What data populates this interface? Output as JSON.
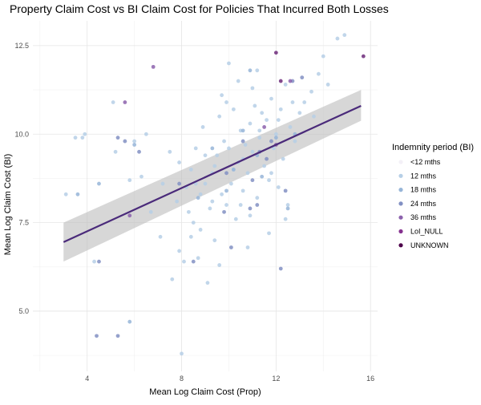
{
  "chart_data": {
    "type": "scatter",
    "title": "Property Claim Cost vs BI Claim Cost for Policies That Incurred Both Losses",
    "xlabel": "Mean Log Claim Cost (Prop)",
    "ylabel": "Mean Log Claim Cost (BI)",
    "xlim": [
      1.7,
      16.3
    ],
    "ylim": [
      3.3,
      13.2
    ],
    "x_ticks": [
      4,
      8,
      12,
      16
    ],
    "y_ticks": [
      5.0,
      7.5,
      10.0,
      12.5
    ],
    "x_tick_labels": [
      "4",
      "8",
      "12",
      "16"
    ],
    "y_tick_labels": [
      "5.0",
      "7.5",
      "10.0",
      "12.5"
    ],
    "grid": true,
    "legend": {
      "title": "Indemnity period (BI)",
      "placement": "right",
      "items": [
        {
          "label": "<12 mths",
          "color": "#f3f0f7"
        },
        {
          "label": "12 mths",
          "color": "#b6cfe6"
        },
        {
          "label": "18 mths",
          "color": "#97b5d8"
        },
        {
          "label": "24 mths",
          "color": "#8290c3"
        },
        {
          "label": "36 mths",
          "color": "#8c62ad"
        },
        {
          "label": "LoI_NULL",
          "color": "#85318f"
        },
        {
          "label": "UNKNOWN",
          "color": "#4d004b"
        }
      ]
    },
    "trend": {
      "x": [
        3.0,
        15.6
      ],
      "y": [
        6.95,
        10.8
      ],
      "ci_low": [
        6.4,
        10.38
      ],
      "ci_high": [
        7.5,
        11.25
      ],
      "color": "#4a2a7a",
      "band_color": "#bdbdbd"
    },
    "series": [
      {
        "name": "12 mths",
        "color": "#b6cfe6",
        "points": [
          [
            3.1,
            8.3
          ],
          [
            3.5,
            9.9
          ],
          [
            3.8,
            9.9
          ],
          [
            3.9,
            10.0
          ],
          [
            4.3,
            6.4
          ],
          [
            5.1,
            10.9
          ],
          [
            5.2,
            9.5
          ],
          [
            5.8,
            8.7
          ],
          [
            6.0,
            9.8
          ],
          [
            6.3,
            8.8
          ],
          [
            6.5,
            10.0
          ],
          [
            7.1,
            7.1
          ],
          [
            7.5,
            9.5
          ],
          [
            7.6,
            5.9
          ],
          [
            7.8,
            8.1
          ],
          [
            7.9,
            6.7
          ],
          [
            8.0,
            3.8
          ],
          [
            8.1,
            6.4
          ],
          [
            8.2,
            8.5
          ],
          [
            8.3,
            7.8
          ],
          [
            8.4,
            9.0
          ],
          [
            8.5,
            7.5
          ],
          [
            8.6,
            8.6
          ],
          [
            8.7,
            6.5
          ],
          [
            8.8,
            7.3
          ],
          [
            8.9,
            10.2
          ],
          [
            9.0,
            9.4
          ],
          [
            9.1,
            5.8
          ],
          [
            9.2,
            7.9
          ],
          [
            9.3,
            8.1
          ],
          [
            9.4,
            9.1
          ],
          [
            9.5,
            9.4
          ],
          [
            9.6,
            10.5
          ],
          [
            9.7,
            8.3
          ],
          [
            9.8,
            9.8
          ],
          [
            9.9,
            8.0
          ],
          [
            10.0,
            9.6
          ],
          [
            10.1,
            8.6
          ],
          [
            10.2,
            9.0
          ],
          [
            10.3,
            7.6
          ],
          [
            10.4,
            9.2
          ],
          [
            10.5,
            10.1
          ],
          [
            10.6,
            8.4
          ],
          [
            10.7,
            9.7
          ],
          [
            10.8,
            8.9
          ],
          [
            10.9,
            10.3
          ],
          [
            11.0,
            9.5
          ],
          [
            11.1,
            10.8
          ],
          [
            11.2,
            8.2
          ],
          [
            11.3,
            9.9
          ],
          [
            11.4,
            10.6
          ],
          [
            11.5,
            9.1
          ],
          [
            11.6,
            10.4
          ],
          [
            11.7,
            8.7
          ],
          [
            11.8,
            11.0
          ],
          [
            11.9,
            9.6
          ],
          [
            12.0,
            10.0
          ],
          [
            12.1,
            8.5
          ],
          [
            12.2,
            10.7
          ],
          [
            12.3,
            9.3
          ],
          [
            12.4,
            11.4
          ],
          [
            12.5,
            8.0
          ],
          [
            12.6,
            10.2
          ],
          [
            12.8,
            9.8
          ],
          [
            13.0,
            10.6
          ],
          [
            13.2,
            10.9
          ],
          [
            13.5,
            11.2
          ],
          [
            13.8,
            11.7
          ],
          [
            14.0,
            12.2
          ],
          [
            14.2,
            11.4
          ],
          [
            14.6,
            12.7
          ],
          [
            14.9,
            12.8
          ],
          [
            10.0,
            12.0
          ],
          [
            10.4,
            11.5
          ],
          [
            11.2,
            11.8
          ],
          [
            9.7,
            11.1
          ],
          [
            10.8,
            6.8
          ],
          [
            9.4,
            7.0
          ],
          [
            8.6,
            9.6
          ],
          [
            9.0,
            8.6
          ],
          [
            10.5,
            8.0
          ],
          [
            11.7,
            7.2
          ],
          [
            12.4,
            7.6
          ],
          [
            9.6,
            6.3
          ],
          [
            8.4,
            7.1
          ],
          [
            10.2,
            10.7
          ],
          [
            11.3,
            10.1
          ],
          [
            12.7,
            10.9
          ],
          [
            13.6,
            10.5
          ],
          [
            7.2,
            8.6
          ],
          [
            7.9,
            9.2
          ],
          [
            6.7,
            7.8
          ],
          [
            9.9,
            10.9
          ],
          [
            11.0,
            11.3
          ],
          [
            12.1,
            10.4
          ],
          [
            8.8,
            8.3
          ],
          [
            10.6,
            9.3
          ],
          [
            11.8,
            8.9
          ],
          [
            9.3,
            8.9
          ],
          [
            10.9,
            7.7
          ]
        ]
      },
      {
        "name": "18 mths",
        "color": "#97b5d8",
        "points": [
          [
            3.6,
            8.3
          ],
          [
            4.5,
            8.6
          ],
          [
            5.8,
            4.7
          ],
          [
            9.9,
            8.4
          ],
          [
            10.2,
            9.0
          ],
          [
            10.9,
            11.8
          ],
          [
            11.2,
            9.4
          ],
          [
            12.0,
            9.9
          ],
          [
            12.5,
            7.9
          ],
          [
            11.4,
            8.8
          ],
          [
            10.6,
            10.1
          ],
          [
            9.3,
            9.6
          ],
          [
            6.0,
            9.7
          ],
          [
            8.7,
            8.2
          ],
          [
            12.8,
            10.0
          ]
        ]
      },
      {
        "name": "24 mths",
        "color": "#8290c3",
        "points": [
          [
            4.4,
            4.3
          ],
          [
            5.3,
            4.3
          ],
          [
            4.5,
            6.4
          ],
          [
            5.3,
            9.9
          ],
          [
            5.6,
            9.8
          ],
          [
            6.2,
            9.5
          ],
          [
            7.9,
            8.6
          ],
          [
            8.5,
            6.4
          ],
          [
            9.8,
            7.8
          ],
          [
            10.1,
            6.8
          ],
          [
            10.6,
            9.8
          ],
          [
            11.0,
            8.7
          ],
          [
            11.2,
            8.0
          ],
          [
            11.3,
            9.5
          ],
          [
            11.6,
            9.3
          ],
          [
            12.2,
            6.2
          ],
          [
            12.4,
            8.4
          ],
          [
            13.1,
            11.6
          ],
          [
            12.7,
            11.5
          ],
          [
            10.9,
            7.9
          ],
          [
            9.9,
            8.9
          ],
          [
            11.8,
            9.8
          ]
        ]
      },
      {
        "name": "36 mths",
        "color": "#8c62ad",
        "points": [
          [
            5.6,
            10.9
          ],
          [
            6.8,
            11.9
          ],
          [
            12.6,
            11.5
          ],
          [
            12.0,
            9.7
          ],
          [
            5.8,
            7.7
          ],
          [
            11.5,
            10.2
          ]
        ]
      },
      {
        "name": "UNKNOWN",
        "color": "#6d2a7a",
        "points": [
          [
            12.0,
            12.3
          ],
          [
            12.2,
            11.5
          ],
          [
            15.7,
            12.2
          ]
        ]
      }
    ]
  }
}
